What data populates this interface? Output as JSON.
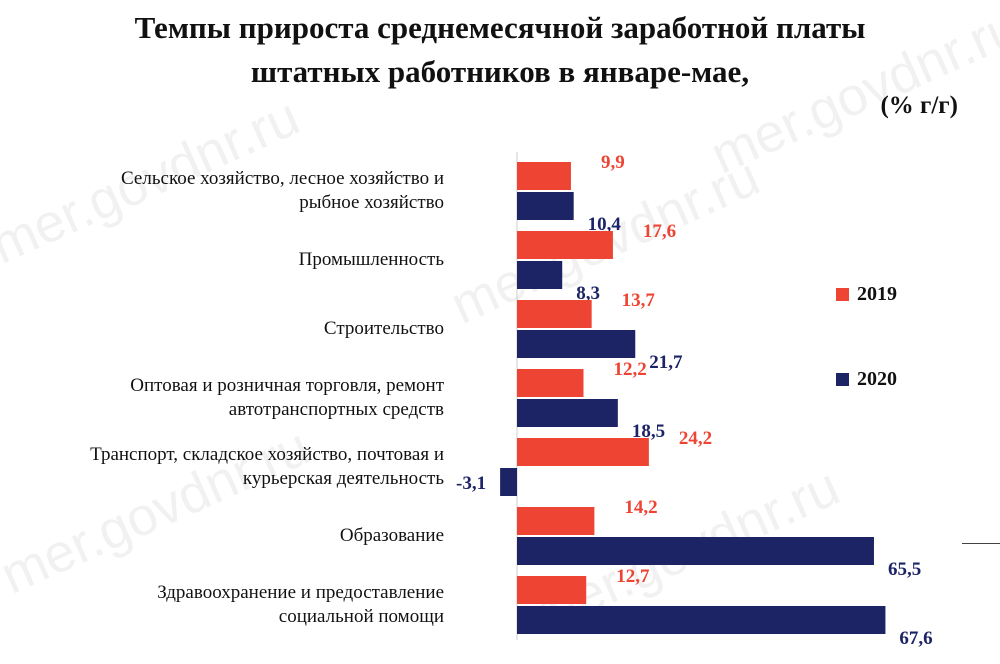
{
  "title_lines": [
    "Темпы прироста среднемесячной заработной платы",
    "штатных работников в январе-мае,"
  ],
  "unit": "(% г/г)",
  "watermark": "mer.govdnr.ru",
  "colors": {
    "2019": "#ee4433",
    "2020": "#1c2466"
  },
  "chart_data": {
    "type": "bar",
    "orientation": "horizontal",
    "title": "Темпы прироста среднемесячной заработной платы штатных работников в январе-мае, (% г/г)",
    "categories": [
      [
        "Сельское хозяйство, лесное хозяйство и",
        "рыбное хозяйство"
      ],
      [
        "Промышленность"
      ],
      [
        "Строительство"
      ],
      [
        "Оптовая и розничная торговля, ремонт",
        "автотранспортных средств"
      ],
      [
        "Транспорт, складское хозяйство, почтовая и",
        "курьерская деятельность"
      ],
      [
        "Образование"
      ],
      [
        "Здравоохранение и предоставление",
        "социальной помощи"
      ]
    ],
    "series": [
      {
        "name": "2019",
        "values": [
          9.9,
          17.6,
          13.7,
          12.2,
          24.2,
          14.2,
          12.7
        ],
        "labels": [
          "9,9",
          "17,6",
          "13,7",
          "12,2",
          "24,2",
          "14,2",
          "12,7"
        ]
      },
      {
        "name": "2020",
        "values": [
          10.4,
          8.3,
          21.7,
          18.5,
          -3.1,
          65.5,
          67.6
        ],
        "labels": [
          "10,4",
          "8,3",
          "21,7",
          "18,5",
          "-3,1",
          "65,5",
          "67,6"
        ]
      }
    ],
    "legend_position": "right",
    "grid": false
  }
}
